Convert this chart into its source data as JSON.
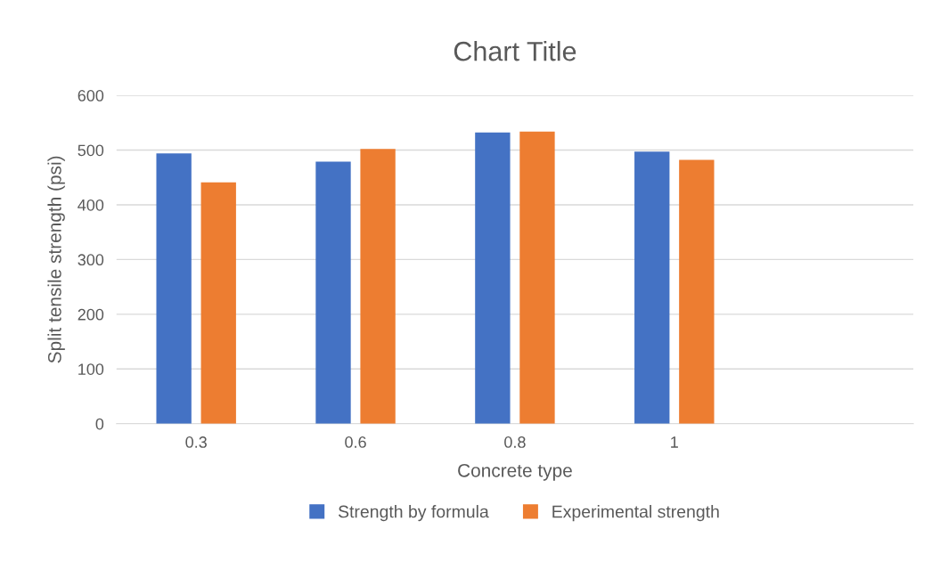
{
  "chart_data": {
    "type": "bar",
    "title": "Chart Title",
    "xlabel": "Concrete type",
    "ylabel": "Split tensile strength (psi)",
    "categories": [
      "0.3",
      "0.6",
      "0.8",
      "1",
      null
    ],
    "series": [
      {
        "name": "Strength by formula",
        "color": "#4472c4",
        "values": [
          494,
          479,
          532,
          497,
          null
        ]
      },
      {
        "name": "Experimental strength",
        "color": "#ed7d31",
        "values": [
          441,
          502,
          534,
          482,
          null
        ]
      }
    ],
    "ylim": [
      0,
      600
    ],
    "yticks": [
      0,
      100,
      200,
      300,
      400,
      500,
      600
    ],
    "grid": "y",
    "legend": "bottom"
  }
}
